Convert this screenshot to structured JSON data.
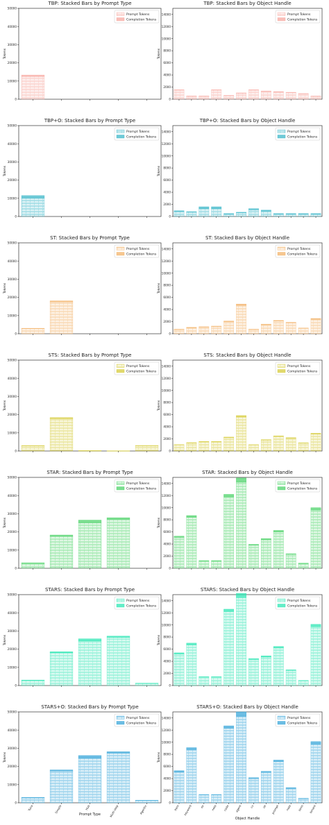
{
  "legend": {
    "prompt": "Prompt Tokens",
    "completion": "Completion Tokens"
  },
  "axis_titles": {
    "left_y": "Tokens",
    "right_y": "Tokens",
    "left_x": "Prompt Type",
    "right_x": "Object Handle"
  },
  "tick_labels": {
    "prompt_types": [
      "Tuna",
      "Simple",
      "Hub",
      "Multi-step",
      "Agentic"
    ],
    "handles": [
      "item",
      "keyword",
      "ex",
      "note",
      "code",
      "agent",
      "cv",
      "ok",
      "prompt",
      "note",
      "term",
      "tenant"
    ]
  },
  "colors": {
    "TBP": "#f7a8a0",
    "TBP+O": "#3fb8c9",
    "ST": "#f3b36a",
    "STS": "#d6cc3c",
    "STAR": "#4fd36a",
    "STARS": "#2ee6b4",
    "STARS+O": "#3aa7d9"
  },
  "chart_data": [
    {
      "type": "bar",
      "title": "TBP: Stacked Bars by Prompt Type",
      "color_key": "TBP",
      "ylim": [
        0,
        50000
      ],
      "yticks": [
        0,
        10000,
        20000,
        30000,
        40000,
        50000
      ],
      "categories": [
        "Tuna",
        "Simple",
        "Hub",
        "Multi-step",
        "Agentic"
      ],
      "series": [
        {
          "name": "Prompt Tokens",
          "values": [
            12500,
            0,
            0,
            0,
            0
          ]
        },
        {
          "name": "Completion Tokens",
          "values": [
            800,
            0,
            0,
            0,
            0
          ]
        }
      ]
    },
    {
      "type": "bar",
      "title": "TBP: Stacked Bars by Object Handle",
      "color_key": "TBP",
      "ylim": [
        0,
        15000
      ],
      "yticks": [
        0,
        2000,
        4000,
        6000,
        8000,
        10000,
        12000,
        14000
      ],
      "categories": [
        "item",
        "keyword",
        "ex",
        "note",
        "code",
        "agent",
        "cv",
        "ok",
        "prompt",
        "note",
        "term",
        "tenant"
      ],
      "series": [
        {
          "name": "Prompt Tokens",
          "values": [
            1500,
            500,
            500,
            1500,
            600,
            1000,
            1500,
            1300,
            1200,
            1100,
            900,
            500
          ]
        },
        {
          "name": "Completion Tokens",
          "values": [
            60,
            30,
            30,
            60,
            30,
            40,
            60,
            50,
            50,
            40,
            40,
            20
          ]
        }
      ]
    },
    {
      "type": "bar",
      "title": "TBP+O: Stacked Bars by Prompt Type",
      "color_key": "TBP+O",
      "ylim": [
        0,
        50000
      ],
      "yticks": [
        0,
        10000,
        20000,
        30000,
        40000,
        50000
      ],
      "categories": [
        "Tuna",
        "Simple",
        "Hub",
        "Multi-step",
        "Agentic"
      ],
      "series": [
        {
          "name": "Prompt Tokens",
          "values": [
            10000,
            0,
            0,
            0,
            0
          ]
        },
        {
          "name": "Completion Tokens",
          "values": [
            1500,
            0,
            0,
            0,
            0
          ]
        }
      ]
    },
    {
      "type": "bar",
      "title": "TBP+O: Stacked Bars by Object Handle",
      "color_key": "TBP+O",
      "ylim": [
        0,
        15000
      ],
      "yticks": [
        0,
        2000,
        4000,
        6000,
        8000,
        10000,
        12000,
        14000
      ],
      "categories": [
        "item",
        "keyword",
        "ex",
        "note",
        "code",
        "agent",
        "cv",
        "ok",
        "prompt",
        "note",
        "term",
        "tenant"
      ],
      "series": [
        {
          "name": "Prompt Tokens",
          "values": [
            800,
            700,
            1300,
            1300,
            400,
            600,
            1100,
            900,
            400,
            400,
            400,
            400
          ]
        },
        {
          "name": "Completion Tokens",
          "values": [
            150,
            100,
            300,
            300,
            80,
            100,
            200,
            150,
            80,
            80,
            80,
            80
          ]
        }
      ]
    },
    {
      "type": "bar",
      "title": "ST: Stacked Bars by Prompt Type",
      "color_key": "ST",
      "ylim": [
        0,
        50000
      ],
      "yticks": [
        0,
        10000,
        20000,
        30000,
        40000,
        50000
      ],
      "categories": [
        "Tuna",
        "Simple",
        "Hub",
        "Multi-step",
        "Agentic"
      ],
      "series": [
        {
          "name": "Prompt Tokens",
          "values": [
            2800,
            17500,
            0,
            0,
            0
          ]
        },
        {
          "name": "Completion Tokens",
          "values": [
            200,
            600,
            0,
            0,
            0
          ]
        }
      ]
    },
    {
      "type": "bar",
      "title": "ST: Stacked Bars by Object Handle",
      "color_key": "ST",
      "ylim": [
        0,
        15000
      ],
      "yticks": [
        0,
        2000,
        4000,
        6000,
        8000,
        10000,
        12000,
        14000
      ],
      "categories": [
        "item",
        "keyword",
        "ex",
        "note",
        "code",
        "agent",
        "cv",
        "ok",
        "prompt",
        "note",
        "term",
        "tenant"
      ],
      "series": [
        {
          "name": "Prompt Tokens",
          "values": [
            700,
            1000,
            1100,
            1200,
            2000,
            4700,
            700,
            1500,
            2100,
            1800,
            900,
            2400
          ]
        },
        {
          "name": "Completion Tokens",
          "values": [
            50,
            60,
            60,
            60,
            100,
            200,
            50,
            80,
            100,
            90,
            50,
            120
          ]
        }
      ]
    },
    {
      "type": "bar",
      "title": "STS: Stacked Bars by Prompt Type",
      "color_key": "STS",
      "ylim": [
        0,
        50000
      ],
      "yticks": [
        0,
        10000,
        20000,
        30000,
        40000,
        50000
      ],
      "categories": [
        "Tuna",
        "Simple",
        "Hub",
        "Multi-step",
        "Agentic"
      ],
      "series": [
        {
          "name": "Prompt Tokens",
          "values": [
            2800,
            17800,
            200,
            100,
            2900
          ]
        },
        {
          "name": "Completion Tokens",
          "values": [
            200,
            600,
            20,
            10,
            150
          ]
        }
      ]
    },
    {
      "type": "bar",
      "title": "STS: Stacked Bars by Object Handle",
      "color_key": "STS",
      "ylim": [
        0,
        15000
      ],
      "yticks": [
        0,
        2000,
        4000,
        6000,
        8000,
        10000,
        12000,
        14000
      ],
      "categories": [
        "item",
        "keyword",
        "ex",
        "note",
        "code",
        "agent",
        "cv",
        "ok",
        "prompt",
        "note",
        "term",
        "tenant"
      ],
      "series": [
        {
          "name": "Prompt Tokens",
          "values": [
            1000,
            1300,
            1500,
            1500,
            2200,
            5600,
            1000,
            1800,
            2400,
            2100,
            1300,
            2800
          ]
        },
        {
          "name": "Completion Tokens",
          "values": [
            60,
            80,
            80,
            80,
            100,
            250,
            50,
            80,
            100,
            100,
            60,
            130
          ]
        }
      ]
    },
    {
      "type": "bar",
      "title": "STAR: Stacked Bars by Prompt Type",
      "color_key": "STAR",
      "ylim": [
        0,
        50000
      ],
      "yticks": [
        0,
        10000,
        20000,
        30000,
        40000,
        50000
      ],
      "categories": [
        "Tuna",
        "Simple",
        "Hub",
        "Multi-step",
        "Agentic"
      ],
      "series": [
        {
          "name": "Prompt Tokens",
          "values": [
            2700,
            17500,
            25000,
            27000,
            0
          ]
        },
        {
          "name": "Completion Tokens",
          "values": [
            300,
            800,
            1500,
            800,
            0
          ]
        }
      ]
    },
    {
      "type": "bar",
      "title": "STAR: Stacked Bars by Object Handle",
      "color_key": "STAR",
      "ylim": [
        0,
        15000
      ],
      "yticks": [
        0,
        2000,
        4000,
        6000,
        8000,
        10000,
        12000,
        14000
      ],
      "categories": [
        "item",
        "keyword",
        "ex",
        "note",
        "code",
        "agent",
        "cv",
        "ok",
        "prompt",
        "note",
        "term",
        "tenant"
      ],
      "series": [
        {
          "name": "Prompt Tokens",
          "values": [
            5100,
            8400,
            1200,
            1200,
            11800,
            14200,
            3800,
            4700,
            6000,
            2300,
            800,
            9600
          ]
        },
        {
          "name": "Completion Tokens",
          "values": [
            200,
            300,
            60,
            60,
            400,
            700,
            150,
            200,
            250,
            100,
            40,
            400
          ]
        }
      ]
    },
    {
      "type": "bar",
      "title": "STARS: Stacked Bars by Prompt Type",
      "color_key": "STARS",
      "ylim": [
        0,
        50000
      ],
      "yticks": [
        0,
        10000,
        20000,
        30000,
        40000,
        50000
      ],
      "categories": [
        "Tuna",
        "Simple",
        "Hub",
        "Multi-step",
        "Agentic"
      ],
      "series": [
        {
          "name": "Prompt Tokens",
          "values": [
            2800,
            18000,
            24500,
            26500,
            1200
          ]
        },
        {
          "name": "Completion Tokens",
          "values": [
            200,
            600,
            1200,
            700,
            80
          ]
        }
      ]
    },
    {
      "type": "bar",
      "title": "STARS: Stacked Bars by Object Handle",
      "color_key": "STARS",
      "ylim": [
        0,
        15000
      ],
      "yticks": [
        0,
        2000,
        4000,
        6000,
        8000,
        10000,
        12000,
        14000
      ],
      "categories": [
        "item",
        "keyword",
        "ex",
        "note",
        "code",
        "agent",
        "cv",
        "ok",
        "prompt",
        "note",
        "term",
        "tenant"
      ],
      "series": [
        {
          "name": "Prompt Tokens",
          "values": [
            5200,
            6700,
            1400,
            1400,
            12200,
            14500,
            4300,
            4700,
            6200,
            2500,
            800,
            9700
          ]
        },
        {
          "name": "Completion Tokens",
          "values": [
            200,
            300,
            60,
            60,
            400,
            700,
            150,
            200,
            250,
            100,
            40,
            400
          ]
        }
      ]
    },
    {
      "type": "bar",
      "title": "STARS+O: Stacked Bars by Prompt Type",
      "color_key": "STARS+O",
      "ylim": [
        0,
        50000
      ],
      "yticks": [
        0,
        10000,
        20000,
        30000,
        40000,
        50000
      ],
      "xlabel": "Prompt Type",
      "categories": [
        "Tuna",
        "Simple",
        "Hub",
        "Multi-step",
        "Agentic"
      ],
      "series": [
        {
          "name": "Prompt Tokens",
          "values": [
            2700,
            17500,
            24500,
            27300,
            1300
          ]
        },
        {
          "name": "Completion Tokens",
          "values": [
            300,
            600,
            1500,
            800,
            80
          ]
        }
      ]
    },
    {
      "type": "bar",
      "title": "STARS+O: Stacked Bars by Object Handle",
      "color_key": "STARS+O",
      "ylim": [
        0,
        15000
      ],
      "yticks": [
        0,
        2000,
        4000,
        6000,
        8000,
        10000,
        12000,
        14000
      ],
      "xlabel": "Object Handle",
      "categories": [
        "item",
        "keyword",
        "ex",
        "note",
        "code",
        "agent",
        "cv",
        "ok",
        "prompt",
        "note",
        "term",
        "tenant"
      ],
      "series": [
        {
          "name": "Prompt Tokens",
          "values": [
            5100,
            8800,
            1300,
            1300,
            12300,
            14300,
            4000,
            5000,
            6800,
            2400,
            700,
            9700
          ]
        },
        {
          "name": "Completion Tokens",
          "values": [
            200,
            300,
            60,
            60,
            400,
            700,
            150,
            200,
            250,
            100,
            40,
            400
          ]
        }
      ]
    }
  ]
}
